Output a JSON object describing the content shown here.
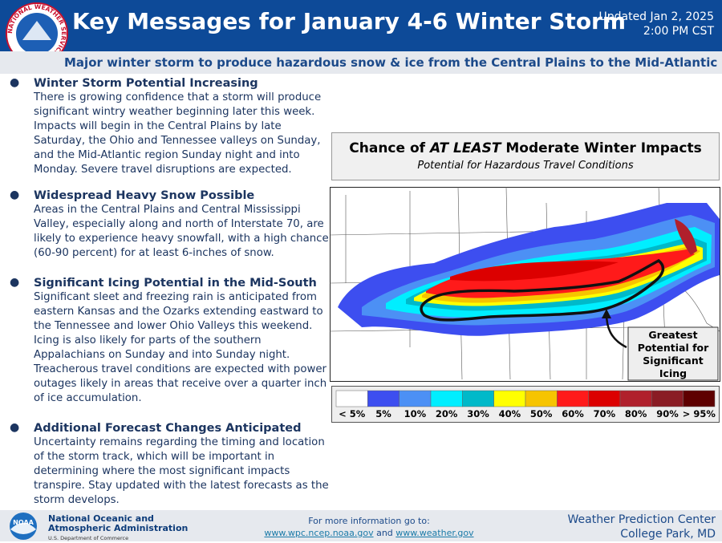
{
  "header": {
    "logo_text": "NATIONAL WEATHER SERVICE",
    "title": "Key Messages for January 4-6 Winter Storm",
    "updated": [
      "Updated Jan 2, 2025",
      "2:00 PM CST"
    ]
  },
  "subtitle": "Major winter storm to produce hazardous snow & ice from the Central Plains to the Mid-Atlantic",
  "bullets": [
    {
      "heading": "Winter Storm Potential Increasing",
      "text": "There is growing confidence that a storm will produce significant wintry weather beginning later this week. Impacts will begin in the Central Plains by late Saturday, the Ohio and Tennessee valleys on Sunday, and the Mid-Atlantic region Sunday night and into Monday.  Severe travel disruptions are expected."
    },
    {
      "heading": "Widespread Heavy Snow Possible",
      "text": "Areas in the Central Plains and Central Mississippi Valley, especially along and north of Interstate 70, are likely to experience heavy snowfall, with a high chance (60-90 percent) for at least 6-inches of snow."
    },
    {
      "heading": "Significant Icing Potential in the Mid-South",
      "text": "Significant sleet and freezing rain is anticipated from eastern Kansas and the Ozarks extending eastward to the Tennessee and lower Ohio Valleys this weekend. Icing is also likely for parts of the southern Appalachians on Sunday and into Sunday night. Treacherous travel conditions are expected with power outages likely in areas that receive over a quarter inch of ice accumulation."
    },
    {
      "heading": "Additional Forecast Changes Anticipated",
      "text": "Uncertainty remains regarding the timing and location of the storm track, which will be important in determining where the most significant impacts transpire. Stay updated with the latest forecasts as the storm develops."
    }
  ],
  "map": {
    "title_parts": [
      "Chance of ",
      "AT LEAST",
      " Moderate Winter Impacts"
    ],
    "subtitle": "Potential for Hazardous Travel Conditions",
    "callout": "Greatest Potential for Significant Icing",
    "legend": [
      {
        "label": "< 5%",
        "color": "#ffffff"
      },
      {
        "label": "5%",
        "color": "#3d4ef0"
      },
      {
        "label": "10%",
        "color": "#4c90f5"
      },
      {
        "label": "20%",
        "color": "#00eeff"
      },
      {
        "label": "30%",
        "color": "#00b9c9"
      },
      {
        "label": "40%",
        "color": "#ffff00"
      },
      {
        "label": "50%",
        "color": "#f6c400"
      },
      {
        "label": "60%",
        "color": "#ff1a1a"
      },
      {
        "label": "70%",
        "color": "#dc0000"
      },
      {
        "label": "80%",
        "color": "#b0202c"
      },
      {
        "label": "90%",
        "color": "#8a1c24"
      },
      {
        "label": "> 95%",
        "color": "#5e0000"
      }
    ]
  },
  "footer": {
    "agency": [
      "National Oceanic and",
      "Atmospheric Administration"
    ],
    "department": "U.S. Department of Commerce",
    "logo": "NOAA",
    "info": "For more information go to:",
    "link1": "www.wpc.ncep.noaa.gov",
    "and": "and",
    "link2": "www.weather.gov",
    "center": [
      "Weather Prediction Center",
      "College Park, MD"
    ]
  }
}
